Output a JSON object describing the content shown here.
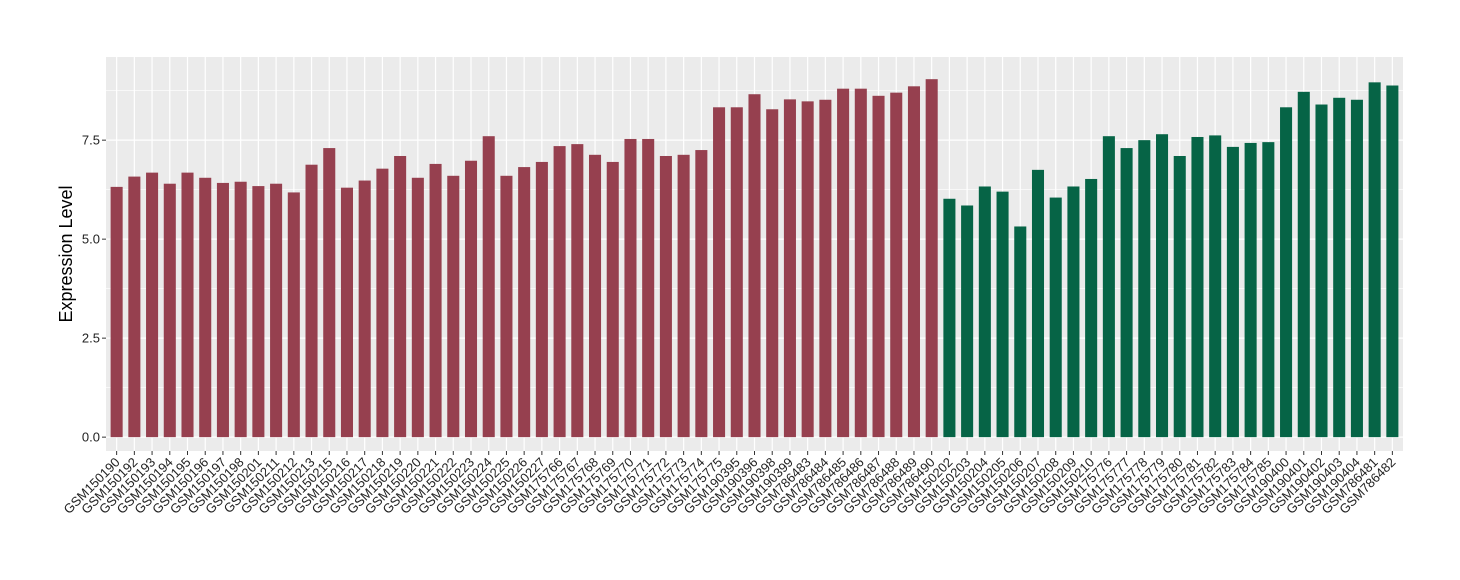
{
  "chart_data": {
    "type": "bar",
    "title": "",
    "xlabel": "",
    "ylabel": "Expression Level",
    "ylim": [
      -0.35,
      9.6
    ],
    "yticks": [
      0.0,
      2.5,
      5.0,
      7.5
    ],
    "ytick_labels": [
      "0.0",
      "2.5",
      "5.0",
      "7.5"
    ],
    "grid": true,
    "legend": "none",
    "colors": {
      "group1": "#96404f",
      "group2": "#066446",
      "panel": "#ebebeb",
      "grid": "#ffffff"
    },
    "categories": [
      "GSM150190",
      "GSM150192",
      "GSM150193",
      "GSM150194",
      "GSM150195",
      "GSM150196",
      "GSM150197",
      "GSM150198",
      "GSM150201",
      "GSM150211",
      "GSM150212",
      "GSM150213",
      "GSM150215",
      "GSM150216",
      "GSM150217",
      "GSM150218",
      "GSM150219",
      "GSM150220",
      "GSM150221",
      "GSM150222",
      "GSM150223",
      "GSM150224",
      "GSM150225",
      "GSM150226",
      "GSM150227",
      "GSM175766",
      "GSM175767",
      "GSM175768",
      "GSM175769",
      "GSM175770",
      "GSM175771",
      "GSM175772",
      "GSM175773",
      "GSM175774",
      "GSM175775",
      "GSM190395",
      "GSM190396",
      "GSM190398",
      "GSM190399",
      "GSM786483",
      "GSM786484",
      "GSM786485",
      "GSM786486",
      "GSM786487",
      "GSM786488",
      "GSM786489",
      "GSM786490",
      "GSM150202",
      "GSM150203",
      "GSM150204",
      "GSM150205",
      "GSM150206",
      "GSM150207",
      "GSM150208",
      "GSM150209",
      "GSM150210",
      "GSM175776",
      "GSM175777",
      "GSM175778",
      "GSM175779",
      "GSM175780",
      "GSM175781",
      "GSM175782",
      "GSM175783",
      "GSM175784",
      "GSM175785",
      "GSM190400",
      "GSM190401",
      "GSM190402",
      "GSM190403",
      "GSM190404",
      "GSM786481",
      "GSM786482"
    ],
    "values": [
      6.32,
      6.58,
      6.68,
      6.4,
      6.68,
      6.55,
      6.42,
      6.45,
      6.34,
      6.4,
      6.18,
      6.88,
      7.3,
      6.3,
      6.48,
      6.78,
      7.1,
      6.55,
      6.9,
      6.6,
      6.98,
      7.6,
      6.6,
      6.82,
      6.95,
      7.35,
      7.4,
      7.13,
      6.95,
      7.53,
      7.53,
      7.1,
      7.13,
      7.25,
      8.33,
      8.33,
      8.66,
      8.28,
      8.53,
      8.48,
      8.52,
      8.8,
      8.8,
      8.62,
      8.7,
      8.86,
      9.04,
      6.02,
      5.85,
      6.33,
      6.2,
      5.32,
      6.75,
      6.05,
      6.33,
      6.52,
      7.6,
      7.3,
      7.5,
      7.65,
      7.1,
      7.58,
      7.62,
      7.33,
      7.43,
      7.45,
      8.33,
      8.72,
      8.4,
      8.57,
      8.52,
      8.96,
      8.88
    ],
    "groups": [
      1,
      1,
      1,
      1,
      1,
      1,
      1,
      1,
      1,
      1,
      1,
      1,
      1,
      1,
      1,
      1,
      1,
      1,
      1,
      1,
      1,
      1,
      1,
      1,
      1,
      1,
      1,
      1,
      1,
      1,
      1,
      1,
      1,
      1,
      1,
      1,
      1,
      1,
      1,
      1,
      1,
      1,
      1,
      1,
      1,
      1,
      1,
      2,
      2,
      2,
      2,
      2,
      2,
      2,
      2,
      2,
      2,
      2,
      2,
      2,
      2,
      2,
      2,
      2,
      2,
      2,
      2,
      2,
      2,
      2,
      2,
      2,
      2
    ]
  }
}
